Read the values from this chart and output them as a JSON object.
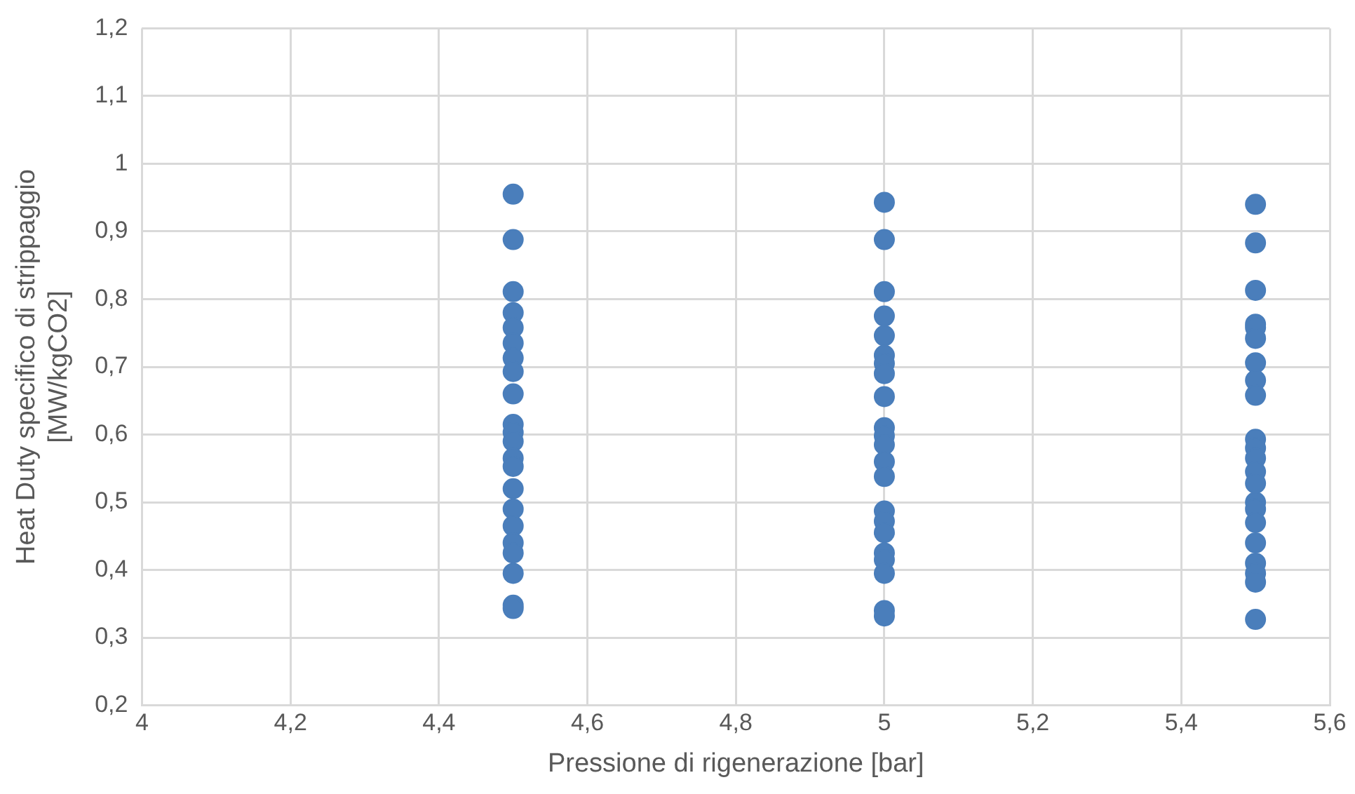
{
  "chart_data": {
    "type": "scatter",
    "xlabel": "Pressione di rigenerazione [bar]",
    "ylabel": "Heat Duty specifico di strippaggio\n[MW/kgCO2]",
    "x": [
      4.5,
      4.5,
      4.5,
      4.5,
      4.5,
      4.5,
      4.5,
      4.5,
      4.5,
      4.5,
      4.5,
      4.5,
      4.5,
      4.5,
      4.5,
      4.5,
      4.5,
      4.5,
      4.5,
      4.5,
      4.5,
      4.5,
      5,
      5,
      5,
      5,
      5,
      5,
      5,
      5,
      5,
      5,
      5,
      5,
      5,
      5,
      5,
      5,
      5,
      5,
      5,
      5,
      5,
      5,
      5.5,
      5.5,
      5.5,
      5.5,
      5.5,
      5.5,
      5.5,
      5.5,
      5.5,
      5.5,
      5.5,
      5.5,
      5.5,
      5.5,
      5.5,
      5.5,
      5.5,
      5.5,
      5.5,
      5.5,
      5.5,
      5.5
    ],
    "series": [
      {
        "color": "#4a7ebb",
        "values": [
          0.955,
          0.888,
          0.811,
          0.78,
          0.758,
          0.735,
          0.713,
          0.693,
          0.66,
          0.615,
          0.603,
          0.59,
          0.565,
          0.553,
          0.52,
          0.49,
          0.465,
          0.44,
          0.425,
          0.395,
          0.348,
          0.343,
          0.943,
          0.888,
          0.811,
          0.775,
          0.746,
          0.717,
          0.705,
          0.69,
          0.656,
          0.61,
          0.598,
          0.585,
          0.56,
          0.538,
          0.487,
          0.472,
          0.455,
          0.425,
          0.415,
          0.395,
          0.34,
          0.332,
          0.94,
          0.883,
          0.813,
          0.763,
          0.758,
          0.742,
          0.706,
          0.68,
          0.658,
          0.593,
          0.58,
          0.565,
          0.545,
          0.528,
          0.5,
          0.49,
          0.47,
          0.44,
          0.41,
          0.395,
          0.382,
          0.327
        ]
      }
    ],
    "xlim": [
      4,
      5.6
    ],
    "xticks": [
      4,
      {
        "value": 4.2,
        "label": "4,2"
      },
      {
        "value": 4.4,
        "label": "4,4"
      },
      {
        "value": 4.6,
        "label": "4,6"
      },
      {
        "value": 4.8,
        "label": "4,8"
      },
      5,
      {
        "value": 5.2,
        "label": "5,2"
      },
      {
        "value": 5.4,
        "label": "5,4"
      },
      {
        "value": 5.6,
        "label": "5,6"
      }
    ],
    "ylim": [
      0.2,
      1.2
    ],
    "yticks": [
      {
        "value": 0.2,
        "label": "0,2"
      },
      {
        "value": 0.3,
        "label": "0,3"
      },
      {
        "value": 0.4,
        "label": "0,4"
      },
      {
        "value": 0.5,
        "label": "0,5"
      },
      {
        "value": 0.6,
        "label": "0,6"
      },
      {
        "value": 0.7,
        "label": "0,7"
      },
      {
        "value": 0.8,
        "label": "0,8"
      },
      {
        "value": 0.9,
        "label": "0,9"
      },
      1,
      {
        "value": 1.1,
        "label": "1,1"
      },
      {
        "value": 1.2,
        "label": "1,2"
      }
    ],
    "grid": true,
    "legend": false,
    "marker": "circle"
  }
}
